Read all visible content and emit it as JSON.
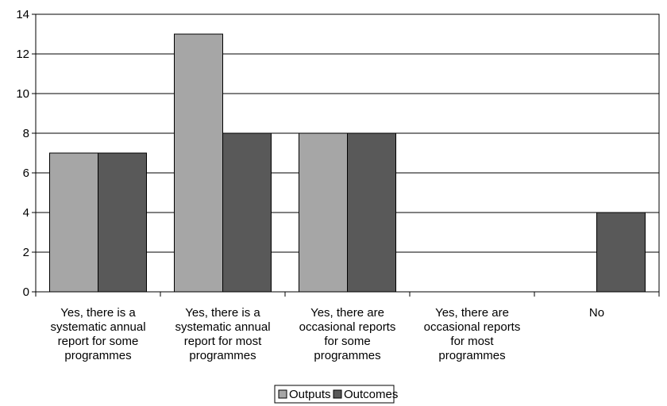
{
  "chart_data": {
    "type": "bar",
    "categories": [
      [
        "Yes, there is a",
        "systematic annual",
        "report for some",
        "programmes"
      ],
      [
        "Yes, there is a",
        "systematic annual",
        "report for most",
        "programmes"
      ],
      [
        "Yes, there are",
        "occasional reports",
        "for some",
        "programmes"
      ],
      [
        "Yes, there are",
        "occasional reports",
        "for most",
        "programmes"
      ],
      [
        "No"
      ]
    ],
    "series": [
      {
        "name": "Outputs",
        "values": [
          7,
          13,
          8,
          0,
          0
        ],
        "color": "#a6a6a6"
      },
      {
        "name": "Outcomes",
        "values": [
          7,
          8,
          8,
          0,
          4
        ],
        "color": "#595959"
      }
    ],
    "yticks": [
      0,
      2,
      4,
      6,
      8,
      10,
      12,
      14
    ],
    "ylim": [
      0,
      14
    ],
    "grid": true,
    "legend": "bottom-center",
    "title": "",
    "xlabel": "",
    "ylabel": ""
  }
}
